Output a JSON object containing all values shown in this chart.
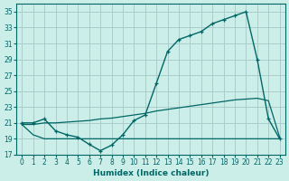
{
  "xlabel": "Humidex (Indice chaleur)",
  "background_color": "#cceee8",
  "grid_color": "#aacccc",
  "line_color": "#006666",
  "xlim": [
    -0.5,
    23.5
  ],
  "ylim": [
    17,
    36
  ],
  "yticks": [
    17,
    19,
    21,
    23,
    25,
    27,
    29,
    31,
    33,
    35
  ],
  "xticks": [
    0,
    1,
    2,
    3,
    4,
    5,
    6,
    7,
    8,
    9,
    10,
    11,
    12,
    13,
    14,
    15,
    16,
    17,
    18,
    19,
    20,
    21,
    22,
    23
  ],
  "humidex_data": [
    21,
    21,
    21.5,
    20,
    19.5,
    19.2,
    18.3,
    17.5,
    18.2,
    19.5,
    21.3,
    22,
    26,
    30,
    31.5,
    32,
    32.5,
    33.5,
    34,
    34.5,
    35,
    29,
    21.5,
    19
  ],
  "min_data": [
    20.8,
    19.5,
    19,
    19,
    19,
    19,
    19,
    19,
    19,
    19,
    19,
    19,
    19,
    19,
    19,
    19,
    19,
    19,
    19,
    19,
    19,
    19,
    19,
    19
  ],
  "max_data": [
    20.8,
    20.8,
    21,
    21,
    21.1,
    21.2,
    21.3,
    21.5,
    21.6,
    21.8,
    22.0,
    22.2,
    22.5,
    22.7,
    22.9,
    23.1,
    23.3,
    23.5,
    23.7,
    23.9,
    24.0,
    24.1,
    23.8,
    19.2
  ]
}
